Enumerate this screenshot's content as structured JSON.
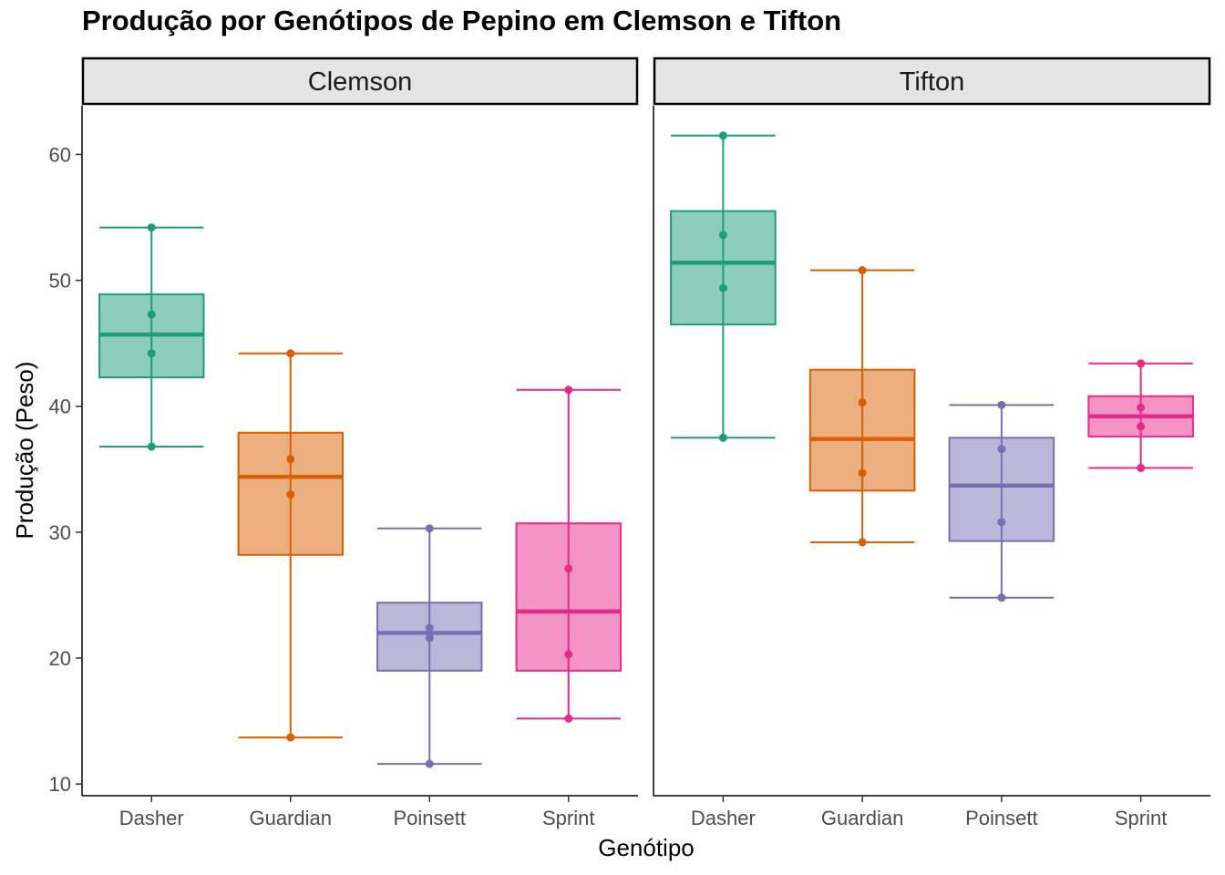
{
  "chart_data": {
    "type": "boxplot",
    "title": "Produção por Genótipos de Pepino em Clemson e Tifton",
    "xlabel": "Genótipo",
    "ylabel": "Produção (Peso)",
    "ylim": [
      10,
      63
    ],
    "yticks": [
      10,
      20,
      30,
      40,
      50,
      60
    ],
    "categories": [
      "Dasher",
      "Guardian",
      "Poinsett",
      "Sprint"
    ],
    "colors": {
      "Dasher": "#1b9e77",
      "Guardian": "#d95f02",
      "Poinsett": "#7570b3",
      "Sprint": "#e7298a"
    },
    "fill_alpha": 0.5,
    "grid": false,
    "legend": "none",
    "panels": [
      {
        "name": "Clemson",
        "groups": [
          {
            "genotype": "Dasher",
            "min": 36.8,
            "q1": 42.3,
            "median": 45.7,
            "q3": 48.9,
            "max": 54.2,
            "points": [
              36.8,
              44.2,
              47.3,
              54.2
            ]
          },
          {
            "genotype": "Guardian",
            "min": 13.7,
            "q1": 28.2,
            "median": 34.4,
            "q3": 37.9,
            "max": 44.2,
            "points": [
              13.7,
              33.0,
              35.8,
              44.2
            ]
          },
          {
            "genotype": "Poinsett",
            "min": 11.6,
            "q1": 19.0,
            "median": 22.0,
            "q3": 24.4,
            "max": 30.3,
            "points": [
              11.6,
              21.6,
              22.4,
              30.3
            ]
          },
          {
            "genotype": "Sprint",
            "min": 15.2,
            "q1": 19.0,
            "median": 23.7,
            "q3": 30.7,
            "max": 41.3,
            "points": [
              15.2,
              20.3,
              27.1,
              41.3
            ]
          }
        ]
      },
      {
        "name": "Tifton",
        "groups": [
          {
            "genotype": "Dasher",
            "min": 37.5,
            "q1": 46.5,
            "median": 51.4,
            "q3": 55.5,
            "max": 61.5,
            "points": [
              37.5,
              49.4,
              53.6,
              61.5
            ]
          },
          {
            "genotype": "Guardian",
            "min": 29.2,
            "q1": 33.3,
            "median": 37.4,
            "q3": 42.9,
            "max": 50.8,
            "points": [
              29.2,
              34.7,
              40.3,
              50.8
            ]
          },
          {
            "genotype": "Poinsett",
            "min": 24.8,
            "q1": 29.3,
            "median": 33.7,
            "q3": 37.5,
            "max": 40.1,
            "points": [
              24.8,
              30.8,
              36.6,
              40.1
            ]
          },
          {
            "genotype": "Sprint",
            "min": 35.1,
            "q1": 37.6,
            "median": 39.2,
            "q3": 40.8,
            "max": 43.4,
            "points": [
              35.1,
              38.4,
              39.9,
              43.4
            ]
          }
        ]
      }
    ]
  }
}
